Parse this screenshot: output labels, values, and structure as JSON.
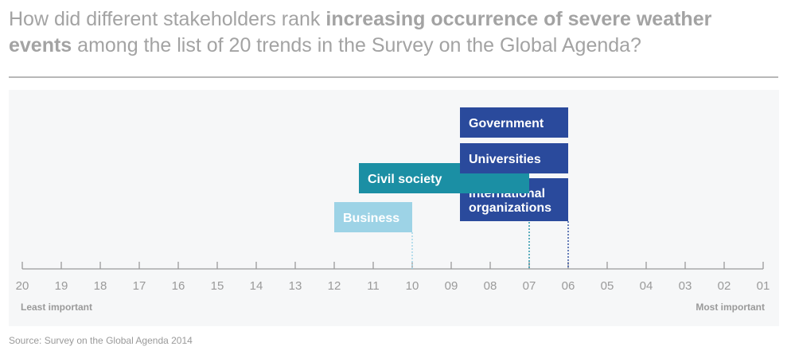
{
  "title": {
    "prefix": "How did different stakeholders rank ",
    "bold": "increasing occurrence of severe weather events",
    "suffix": " among the list of 20 trends in the Survey on the Global Agenda?"
  },
  "source": "Source: Survey on the Global Agenda 2014",
  "colors": {
    "dark_blue": "#2a4a9c",
    "teal": "#1b8fa4",
    "light_blue": "#9dd3e6",
    "axis": "#9a9a9a",
    "tick_label": "#9a9a9a"
  },
  "chart_data": {
    "type": "bar",
    "title": "",
    "xlabel": "",
    "ylabel": "",
    "x_ticks": [
      "20",
      "19",
      "18",
      "17",
      "16",
      "15",
      "14",
      "13",
      "12",
      "11",
      "10",
      "09",
      "08",
      "07",
      "06",
      "05",
      "04",
      "03",
      "02",
      "01"
    ],
    "x_min_label": "Least important",
    "x_max_label": "Most important",
    "xlim": [
      20,
      1
    ],
    "series": [
      {
        "name": "Government",
        "rank": 6,
        "label_lines": [
          "Government"
        ],
        "color": "#2a4a9c"
      },
      {
        "name": "Universities",
        "rank": 6,
        "label_lines": [
          "Universities"
        ],
        "color": "#2a4a9c"
      },
      {
        "name": "Civil society",
        "rank": 7,
        "label_lines": [
          "Civil society"
        ],
        "color": "#1b8fa4"
      },
      {
        "name": "International organizations",
        "rank": 6,
        "label_lines": [
          "International",
          "organizations"
        ],
        "color": "#2a4a9c"
      },
      {
        "name": "Business",
        "rank": 10,
        "label_lines": [
          "Business"
        ],
        "color": "#9dd3e6"
      }
    ],
    "grid": false
  }
}
